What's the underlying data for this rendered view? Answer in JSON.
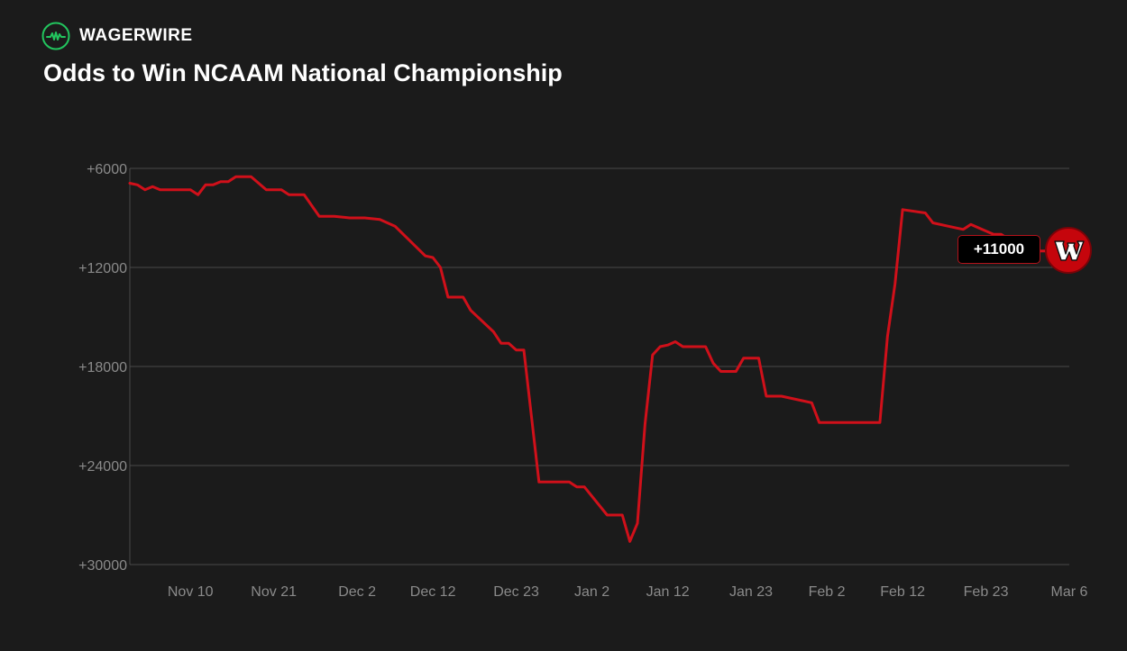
{
  "brand": {
    "name": "WAGERWIRE",
    "logo_icon": "pulse-icon",
    "accent": "#22c55e"
  },
  "title": "Odds to Win NCAAM National Championship",
  "badge": {
    "value": "+11000"
  },
  "team_logo": {
    "icon": "wisconsin-w-logo-icon",
    "color": "#c5050c"
  },
  "colors": {
    "background": "#1b1b1b",
    "line": "#d0101a",
    "grid": "#4a4a4a",
    "tick": "#8a8a8a"
  },
  "chart_data": {
    "type": "line",
    "title": "Odds to Win NCAAM National Championship",
    "xlabel": "",
    "ylabel": "",
    "y_axis_reversed": true,
    "ylim": [
      6000,
      30000
    ],
    "yticks": [
      6000,
      12000,
      18000,
      24000,
      30000
    ],
    "ytick_labels": [
      "+6000",
      "+12000",
      "+18000",
      "+24000",
      "+30000"
    ],
    "xlim": [
      "Nov 2",
      "Mar 6"
    ],
    "xticks": [
      "Nov 10",
      "Nov 21",
      "Dec 2",
      "Dec 12",
      "Dec 23",
      "Jan 2",
      "Jan 12",
      "Jan 23",
      "Feb 2",
      "Feb 12",
      "Feb 23",
      "Mar 6"
    ],
    "grid": "horizontal",
    "legend": "none",
    "last_value_label": "+11000",
    "series": [
      {
        "x": [
          "Nov 2",
          "Nov 3",
          "Nov 4",
          "Nov 5",
          "Nov 6",
          "Nov 7",
          "Nov 8",
          "Nov 10",
          "Nov 11",
          "Nov 12",
          "Nov 13",
          "Nov 14",
          "Nov 15",
          "Nov 16",
          "Nov 17",
          "Nov 18",
          "Nov 20",
          "Nov 21",
          "Nov 22",
          "Nov 23",
          "Nov 25",
          "Nov 27",
          "Nov 29",
          "Dec 1",
          "Dec 3",
          "Dec 5",
          "Dec 7",
          "Dec 9",
          "Dec 11",
          "Dec 12",
          "Dec 13",
          "Dec 14",
          "Dec 16",
          "Dec 17",
          "Dec 20",
          "Dec 21",
          "Dec 22",
          "Dec 23",
          "Dec 24",
          "Dec 26",
          "Dec 27",
          "Dec 30",
          "Dec 31",
          "Jan 1",
          "Jan 4",
          "Jan 5",
          "Jan 6",
          "Jan 7",
          "Jan 8",
          "Jan 9",
          "Jan 10",
          "Jan 11",
          "Jan 12",
          "Jan 13",
          "Jan 14",
          "Jan 16",
          "Jan 17",
          "Jan 18",
          "Jan 19",
          "Jan 21",
          "Jan 22",
          "Jan 24",
          "Jan 25",
          "Jan 26",
          "Jan 27",
          "Jan 31",
          "Feb 1",
          "Feb 9",
          "Feb 10",
          "Feb 11",
          "Feb 12",
          "Feb 15",
          "Feb 16",
          "Feb 18",
          "Feb 20",
          "Feb 21",
          "Feb 24",
          "Feb 25",
          "Feb 26",
          "Feb 27",
          "Mar 1",
          "Mar 3"
        ],
        "values": [
          6900,
          7000,
          7300,
          7100,
          7300,
          7300,
          7300,
          7300,
          7600,
          7000,
          7000,
          6800,
          6800,
          6500,
          6500,
          6500,
          7300,
          7300,
          7300,
          7600,
          7600,
          8900,
          8900,
          9000,
          9000,
          9100,
          9500,
          10400,
          11300,
          11400,
          12000,
          13800,
          13800,
          14600,
          15900,
          16600,
          16600,
          17000,
          17000,
          25000,
          25000,
          25000,
          25300,
          25300,
          27000,
          27000,
          27000,
          28600,
          27500,
          21500,
          17300,
          16800,
          16700,
          16500,
          16800,
          16800,
          16800,
          17800,
          18300,
          18300,
          17500,
          17500,
          19800,
          19800,
          19800,
          20200,
          21400,
          21400,
          16200,
          13000,
          8500,
          8700,
          9300,
          9500,
          9700,
          9400,
          10000,
          10000,
          10300,
          10500,
          11000,
          11000
        ]
      }
    ]
  }
}
